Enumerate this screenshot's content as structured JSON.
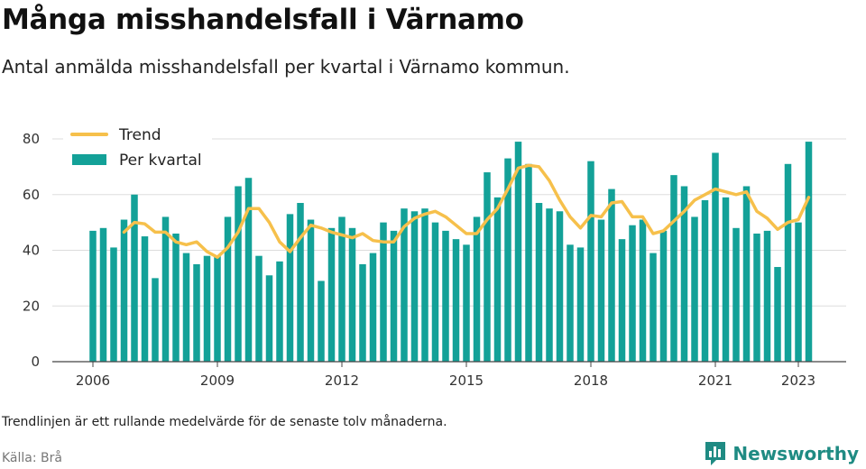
{
  "title": "Många misshandelsfall i Värnamo",
  "subtitle": "Antal anmälda misshandelsfall per kvartal i Värnamo kommun.",
  "footnote": "Trendlinjen är ett rullande medelvärde för de senaste tolv månaderna.",
  "source": "Källa: Brå",
  "logo": {
    "text": "Newsworthy",
    "icon": "newsworthy-chart-icon"
  },
  "colors": {
    "bar": "#13a198",
    "trend": "#f6c04b",
    "grid": "#dddddd",
    "axis": "#444444",
    "logo": "#1f8b83"
  },
  "chart_data": {
    "type": "bar",
    "title": "Många misshandelsfall i Värnamo",
    "ylim": [
      0,
      80
    ],
    "yticks": [
      0,
      20,
      40,
      60,
      80
    ],
    "xticks": [
      {
        "label": "2006",
        "x": 2006.0
      },
      {
        "label": "2009",
        "x": 2009.0
      },
      {
        "label": "2012",
        "x": 2012.0
      },
      {
        "label": "2015",
        "x": 2015.0
      },
      {
        "label": "2018",
        "x": 2018.0
      },
      {
        "label": "2021",
        "x": 2021.0
      },
      {
        "label": "2023",
        "x": 2023.0
      }
    ],
    "grid": true,
    "legend_position": "top-left",
    "series": [
      {
        "name": "Per kvartal",
        "type": "bar",
        "quarters": [
          "2006 Q1",
          "2006 Q2",
          "2006 Q3",
          "2006 Q4",
          "2007 Q1",
          "2007 Q2",
          "2007 Q3",
          "2007 Q4",
          "2008 Q1",
          "2008 Q2",
          "2008 Q3",
          "2008 Q4",
          "2009 Q1",
          "2009 Q2",
          "2009 Q3",
          "2009 Q4",
          "2010 Q1",
          "2010 Q2",
          "2010 Q3",
          "2010 Q4",
          "2011 Q1",
          "2011 Q2",
          "2011 Q3",
          "2011 Q4",
          "2012 Q1",
          "2012 Q2",
          "2012 Q3",
          "2012 Q4",
          "2013 Q1",
          "2013 Q2",
          "2013 Q3",
          "2013 Q4",
          "2014 Q1",
          "2014 Q2",
          "2014 Q3",
          "2014 Q4",
          "2015 Q1",
          "2015 Q2",
          "2015 Q3",
          "2015 Q4",
          "2016 Q1",
          "2016 Q2",
          "2016 Q3",
          "2016 Q4",
          "2017 Q1",
          "2017 Q2",
          "2017 Q3",
          "2017 Q4",
          "2018 Q1",
          "2018 Q2",
          "2018 Q3",
          "2018 Q4",
          "2019 Q1",
          "2019 Q2",
          "2019 Q3",
          "2019 Q4",
          "2020 Q1",
          "2020 Q2",
          "2020 Q3",
          "2020 Q4",
          "2021 Q1",
          "2021 Q2",
          "2021 Q3",
          "2021 Q4",
          "2022 Q1",
          "2022 Q2",
          "2022 Q3",
          "2022 Q4",
          "2023 Q1",
          "2023 Q2"
        ],
        "values": [
          47,
          48,
          41,
          51,
          60,
          45,
          30,
          52,
          46,
          39,
          35,
          38,
          38,
          52,
          63,
          66,
          38,
          31,
          36,
          53,
          57,
          51,
          29,
          48,
          52,
          48,
          35,
          39,
          50,
          47,
          55,
          54,
          55,
          50,
          47,
          44,
          42,
          52,
          68,
          59,
          73,
          79,
          71,
          57,
          55,
          54,
          42,
          41,
          72,
          51,
          62,
          44,
          49,
          51,
          39,
          47,
          67,
          63,
          52,
          58,
          75,
          59,
          48,
          63,
          46,
          47,
          34,
          71,
          50,
          79
        ]
      },
      {
        "name": "Trend",
        "type": "line",
        "start_quarter": "2006 Q4",
        "values": [
          46.5,
          50,
          49.5,
          46.5,
          46.5,
          43,
          42,
          43,
          39.5,
          37.5,
          41,
          46.5,
          55,
          55,
          50,
          43,
          39.5,
          44.5,
          49,
          48,
          46.5,
          45.5,
          44.5,
          46,
          43.5,
          43,
          43,
          48.5,
          51.5,
          53,
          54,
          52,
          49,
          46,
          46,
          51,
          55,
          62,
          69.5,
          70.5,
          70,
          65,
          58,
          52,
          48,
          52.5,
          52,
          57,
          57.5,
          52,
          52,
          46,
          47,
          50.5,
          54,
          58,
          60,
          62,
          61,
          60,
          61,
          54,
          51.5,
          47.5,
          50,
          51,
          59
        ]
      }
    ]
  }
}
